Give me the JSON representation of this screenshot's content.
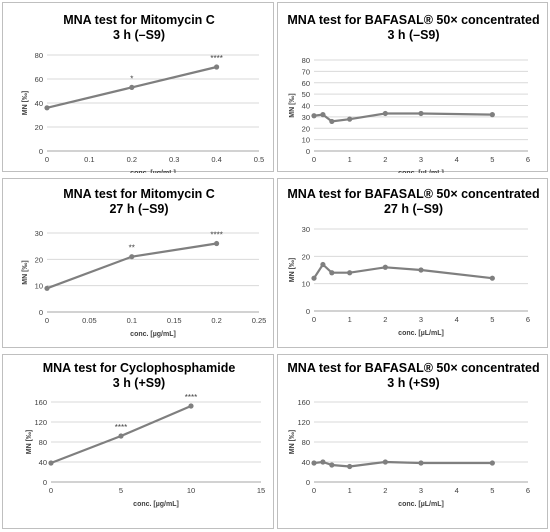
{
  "colors": {
    "line": "#7f7f7f",
    "gridline": "#d9d9d9",
    "axis": "#a6a6a6",
    "text": "#404040",
    "title": "#000000"
  },
  "chart_data": [
    {
      "type": "line",
      "title": "MNA test for Mitomycin C",
      "subtitle": "3 h (–S9)",
      "xlabel": "conc. [µg/mL]",
      "ylabel": "MN [‰]",
      "x_ticks": [
        "0",
        "0.1",
        "0.2",
        "0.3",
        "0.4",
        "0.5"
      ],
      "y_ticks": [
        "0",
        "20",
        "40",
        "60",
        "80"
      ],
      "xlim": [
        0,
        0.5
      ],
      "ylim": [
        0,
        80
      ],
      "grid": "horizontal",
      "series": [
        {
          "x": [
            0,
            0.2,
            0.4
          ],
          "y": [
            36,
            53,
            70
          ],
          "labels": [
            "",
            "*",
            "****"
          ]
        }
      ]
    },
    {
      "type": "line",
      "title": "MNA test for BAFASAL® 50× concentrated",
      "subtitle": "3 h (–S9)",
      "xlabel": "conc. [µL/mL]",
      "ylabel": "MN [‰]",
      "x_ticks": [
        "0",
        "1",
        "2",
        "3",
        "4",
        "5",
        "6"
      ],
      "y_ticks": [
        "0",
        "10",
        "20",
        "30",
        "40",
        "50",
        "60",
        "70",
        "80"
      ],
      "xlim": [
        0,
        6
      ],
      "ylim": [
        0,
        80
      ],
      "grid": "horizontal",
      "series": [
        {
          "x": [
            0,
            0.25,
            0.5,
            1,
            2,
            3,
            5
          ],
          "y": [
            31,
            32,
            26,
            28,
            33,
            33,
            32
          ],
          "labels": [
            "",
            "",
            "",
            "",
            "",
            "",
            ""
          ]
        }
      ]
    },
    {
      "type": "line",
      "title": "MNA test for Mitomycin C",
      "subtitle": "27 h (–S9)",
      "xlabel": "conc. [µg/mL]",
      "ylabel": "MN [‰]",
      "x_ticks": [
        "0",
        "0.05",
        "0.1",
        "0.15",
        "0.2",
        "0.25"
      ],
      "y_ticks": [
        "0",
        "10",
        "20",
        "30"
      ],
      "xlim": [
        0,
        0.25
      ],
      "ylim": [
        0,
        30
      ],
      "grid": "horizontal",
      "series": [
        {
          "x": [
            0,
            0.1,
            0.2
          ],
          "y": [
            9,
            21,
            26
          ],
          "labels": [
            "",
            "**",
            "****"
          ]
        }
      ]
    },
    {
      "type": "line",
      "title": "MNA test for BAFASAL® 50× concentrated",
      "subtitle": "27 h (–S9)",
      "xlabel": "conc. [µL/mL]",
      "ylabel": "MN [‰]",
      "x_ticks": [
        "0",
        "1",
        "2",
        "3",
        "4",
        "5",
        "6"
      ],
      "y_ticks": [
        "0",
        "10",
        "20",
        "30"
      ],
      "xlim": [
        0,
        6
      ],
      "ylim": [
        0,
        30
      ],
      "grid": "horizontal",
      "series": [
        {
          "x": [
            0,
            0.25,
            0.5,
            1,
            2,
            3,
            5
          ],
          "y": [
            12,
            17,
            14,
            14,
            16,
            15,
            12
          ],
          "labels": [
            "",
            "",
            "",
            "",
            "",
            "",
            ""
          ]
        }
      ]
    },
    {
      "type": "line",
      "title": "MNA test for Cyclophosphamide",
      "subtitle": "3 h (+S9)",
      "xlabel": "conc. [µg/mL]",
      "ylabel": "MN [‰]",
      "x_ticks": [
        "0",
        "5",
        "10",
        "15"
      ],
      "y_ticks": [
        "0",
        "40",
        "80",
        "120",
        "160"
      ],
      "xlim": [
        0,
        15
      ],
      "ylim": [
        0,
        160
      ],
      "grid": "horizontal",
      "series": [
        {
          "x": [
            0,
            5,
            10
          ],
          "y": [
            38,
            92,
            152
          ],
          "labels": [
            "",
            "****",
            "****"
          ]
        }
      ]
    },
    {
      "type": "line",
      "title": "MNA test for BAFASAL® 50× concentrated",
      "subtitle": "3 h (+S9)",
      "xlabel": "conc. [µL/mL]",
      "ylabel": "MN [‰]",
      "x_ticks": [
        "0",
        "1",
        "2",
        "3",
        "4",
        "5",
        "6"
      ],
      "y_ticks": [
        "0",
        "40",
        "80",
        "120",
        "160"
      ],
      "xlim": [
        0,
        6
      ],
      "ylim": [
        0,
        160
      ],
      "grid": "horizontal",
      "series": [
        {
          "x": [
            0,
            0.25,
            0.5,
            1,
            2,
            3,
            5
          ],
          "y": [
            38,
            40,
            34,
            31,
            40,
            38,
            38
          ],
          "labels": [
            "",
            "",
            "",
            "",
            "",
            "",
            ""
          ]
        }
      ]
    }
  ]
}
